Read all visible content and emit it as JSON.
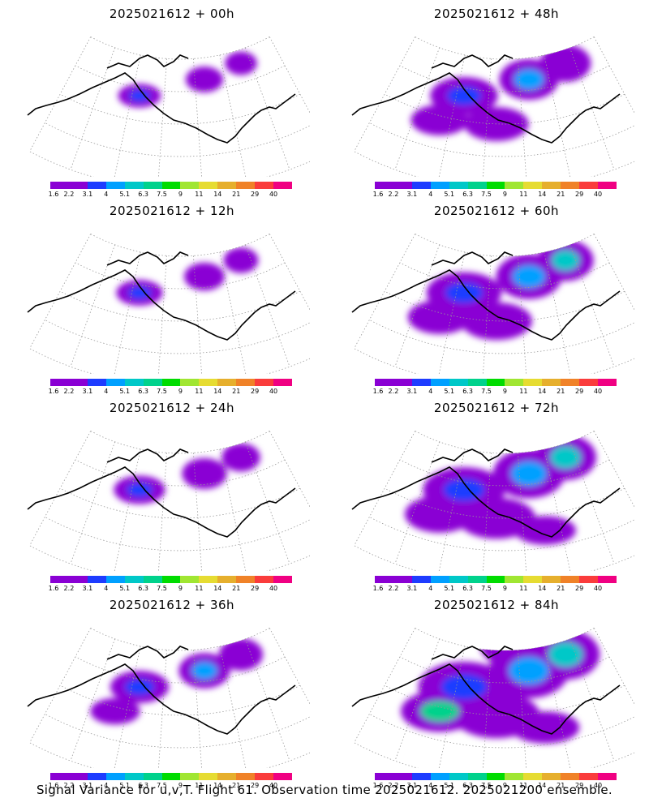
{
  "chart_data": {
    "type": "heatmap",
    "caption": "Signal Variance for u,v,T. Flight 61. Observation time 2025021612. 2025021200 ensemble.",
    "colorbar": {
      "levels": [
        "1.6",
        "2.2",
        "3.1",
        "4",
        "5.1",
        "6.3",
        "7.5",
        "9",
        "11",
        "14",
        "21",
        "29",
        "40"
      ],
      "colors": [
        "#8a00d4",
        "#8a00d4",
        "#1e3cff",
        "#00a0ff",
        "#00c8c8",
        "#00d28c",
        "#00dc00",
        "#a0e632",
        "#e6dc32",
        "#e6af2d",
        "#f08228",
        "#fa3c3c",
        "#f00082"
      ]
    },
    "panels": [
      {
        "title": "2025021612 + 00h",
        "lead_hours": 0,
        "intensity": 0.1
      },
      {
        "title": "2025021612 + 48h",
        "lead_hours": 48,
        "intensity": 0.45
      },
      {
        "title": "2025021612 + 12h",
        "lead_hours": 12,
        "intensity": 0.15
      },
      {
        "title": "2025021612 + 60h",
        "lead_hours": 60,
        "intensity": 0.55
      },
      {
        "title": "2025021612 + 24h",
        "lead_hours": 24,
        "intensity": 0.22
      },
      {
        "title": "2025021612 + 72h",
        "lead_hours": 72,
        "intensity": 0.65
      },
      {
        "title": "2025021612 + 36h",
        "lead_hours": 36,
        "intensity": 0.32
      },
      {
        "title": "2025021612 + 84h",
        "lead_hours": 84,
        "intensity": 0.78
      }
    ]
  }
}
